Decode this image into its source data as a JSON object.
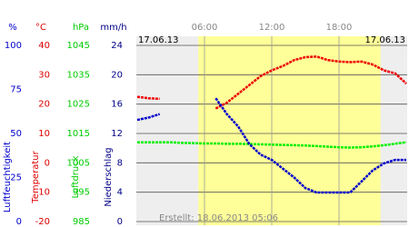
{
  "chart_data": {
    "type": "line",
    "date_left": "17.06.13",
    "date_right": "17.06.13",
    "created": "Erstellt: 18.06.2013 05:06",
    "x": [
      0,
      1,
      2,
      3,
      4,
      5,
      6,
      7,
      8,
      9,
      10,
      11,
      12,
      13,
      14,
      15,
      16,
      17,
      18,
      19,
      20,
      21,
      22,
      23,
      24
    ],
    "xlim": [
      0,
      24
    ],
    "xticks": [
      {
        "value": 6,
        "label": "06:00"
      },
      {
        "value": 12,
        "label": "12:00"
      },
      {
        "value": 18,
        "label": "18:00"
      }
    ],
    "daylight": [
      5.45,
      21.7
    ],
    "grid": true,
    "axes": [
      {
        "unit": "%",
        "name": "Luftfeuchtigkeit",
        "color": "#0000cc",
        "lim": [
          0,
          100
        ],
        "ticks": [
          0,
          25,
          50,
          75,
          100
        ]
      },
      {
        "unit": "°C",
        "name": "Temperatur",
        "color": "#dd0000",
        "lim": [
          -20,
          40
        ],
        "ticks": [
          -20,
          -10,
          0,
          10,
          20,
          30,
          40
        ]
      },
      {
        "unit": "hPa",
        "name": "Luftdruck",
        "color": "#00cc00",
        "lim": [
          985,
          1045
        ],
        "ticks": [
          985,
          995,
          1005,
          1015,
          1025,
          1035,
          1045
        ]
      },
      {
        "unit": "mm/h",
        "name": "Niederschlag",
        "color": "#000088",
        "lim": [
          0,
          24
        ],
        "ticks": [
          0,
          4,
          8,
          12,
          16,
          20,
          24
        ]
      }
    ],
    "series": [
      {
        "axis": 2,
        "color": "#00ee00",
        "values": [
          1012,
          1012,
          1012,
          1012,
          1011.8,
          1011.7,
          1011.6,
          1011.6,
          1011.5,
          1011.5,
          1011.4,
          1011.3,
          1011.2,
          1011.1,
          1011,
          1010.9,
          1010.7,
          1010.5,
          1010.3,
          1010.2,
          1010.3,
          1010.6,
          1011,
          1011.5,
          1012
        ]
      },
      {
        "axis": 1,
        "color": "#ee0000",
        "values": [
          22.5,
          22,
          21.8,
          null,
          null,
          null,
          null,
          18.5,
          20.5,
          23.5,
          26.5,
          29.5,
          31.5,
          33,
          35,
          36,
          36.2,
          35,
          34.5,
          34.3,
          34.5,
          33.5,
          31.5,
          30.5,
          27
        ]
      },
      {
        "axis": 0,
        "color": "#0000cc",
        "values": [
          57.7,
          59,
          61,
          null,
          null,
          null,
          null,
          70,
          61,
          54,
          44,
          38,
          35,
          30,
          25,
          19,
          16.5,
          16.5,
          16.5,
          16.5,
          22.7,
          29,
          33,
          35,
          35
        ]
      }
    ]
  }
}
